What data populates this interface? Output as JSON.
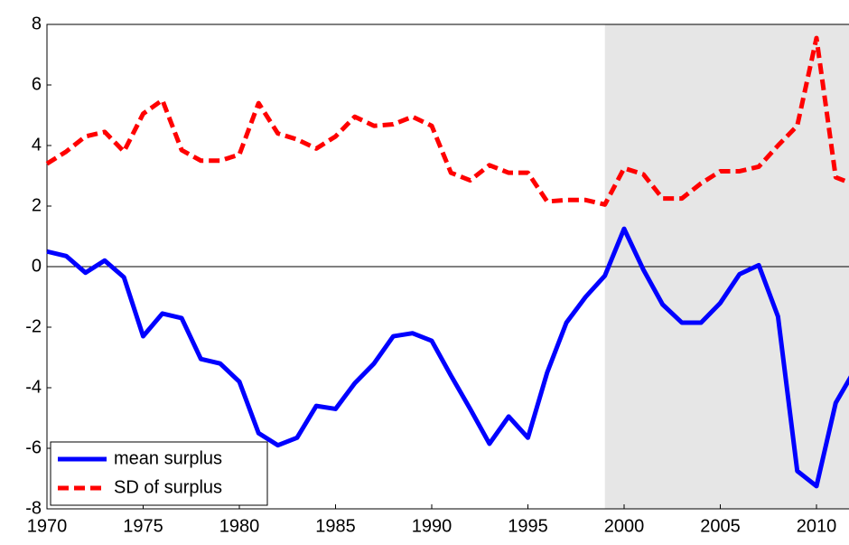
{
  "chart_data": {
    "type": "line",
    "x": [
      1970,
      1971,
      1972,
      1973,
      1974,
      1975,
      1976,
      1977,
      1978,
      1979,
      1980,
      1981,
      1982,
      1983,
      1984,
      1985,
      1986,
      1987,
      1988,
      1989,
      1990,
      1991,
      1992,
      1993,
      1994,
      1995,
      1996,
      1997,
      1998,
      1999,
      2000,
      2001,
      2002,
      2003,
      2004,
      2005,
      2006,
      2007,
      2008,
      2009,
      2010,
      2011,
      2012
    ],
    "series": [
      {
        "name": "mean surplus",
        "color": "#0000ff",
        "dash": false,
        "values": [
          0.5,
          0.35,
          -0.2,
          0.2,
          -0.35,
          -2.3,
          -1.55,
          -1.7,
          -3.05,
          -3.2,
          -3.8,
          -5.5,
          -5.9,
          -5.65,
          -4.6,
          -4.7,
          -3.85,
          -3.2,
          -2.3,
          -2.2,
          -2.45,
          -3.6,
          -4.7,
          -5.85,
          -4.95,
          -5.65,
          -3.5,
          -1.85,
          -1.0,
          -0.3,
          1.25,
          -0.1,
          -1.25,
          -1.85,
          -1.85,
          -1.2,
          -0.25,
          0.05,
          -1.65,
          -6.75,
          -7.25,
          -4.5,
          -3.4
        ]
      },
      {
        "name": "SD of surplus",
        "color": "#ff0000",
        "dash": true,
        "values": [
          3.4,
          3.8,
          4.3,
          4.45,
          3.8,
          5.05,
          5.5,
          3.85,
          3.5,
          3.5,
          3.7,
          5.4,
          4.4,
          4.2,
          3.9,
          4.3,
          4.95,
          4.65,
          4.7,
          4.95,
          4.65,
          3.1,
          2.85,
          3.35,
          3.1,
          3.1,
          2.15,
          2.2,
          2.2,
          2.05,
          3.25,
          3.05,
          2.25,
          2.25,
          2.75,
          3.15,
          3.15,
          3.3,
          4.0,
          4.65,
          7.55,
          2.95,
          2.7
        ]
      }
    ],
    "xlim": [
      1970,
      2012
    ],
    "xticks": [
      1970,
      1975,
      1980,
      1985,
      1990,
      1995,
      2000,
      2005,
      2010
    ],
    "ylim": [
      -8,
      8
    ],
    "yticks": [
      -8,
      -6,
      -4,
      -2,
      0,
      2,
      4,
      6,
      8
    ],
    "shaded_region": [
      1999,
      2012
    ],
    "legend": "bottom-left"
  }
}
